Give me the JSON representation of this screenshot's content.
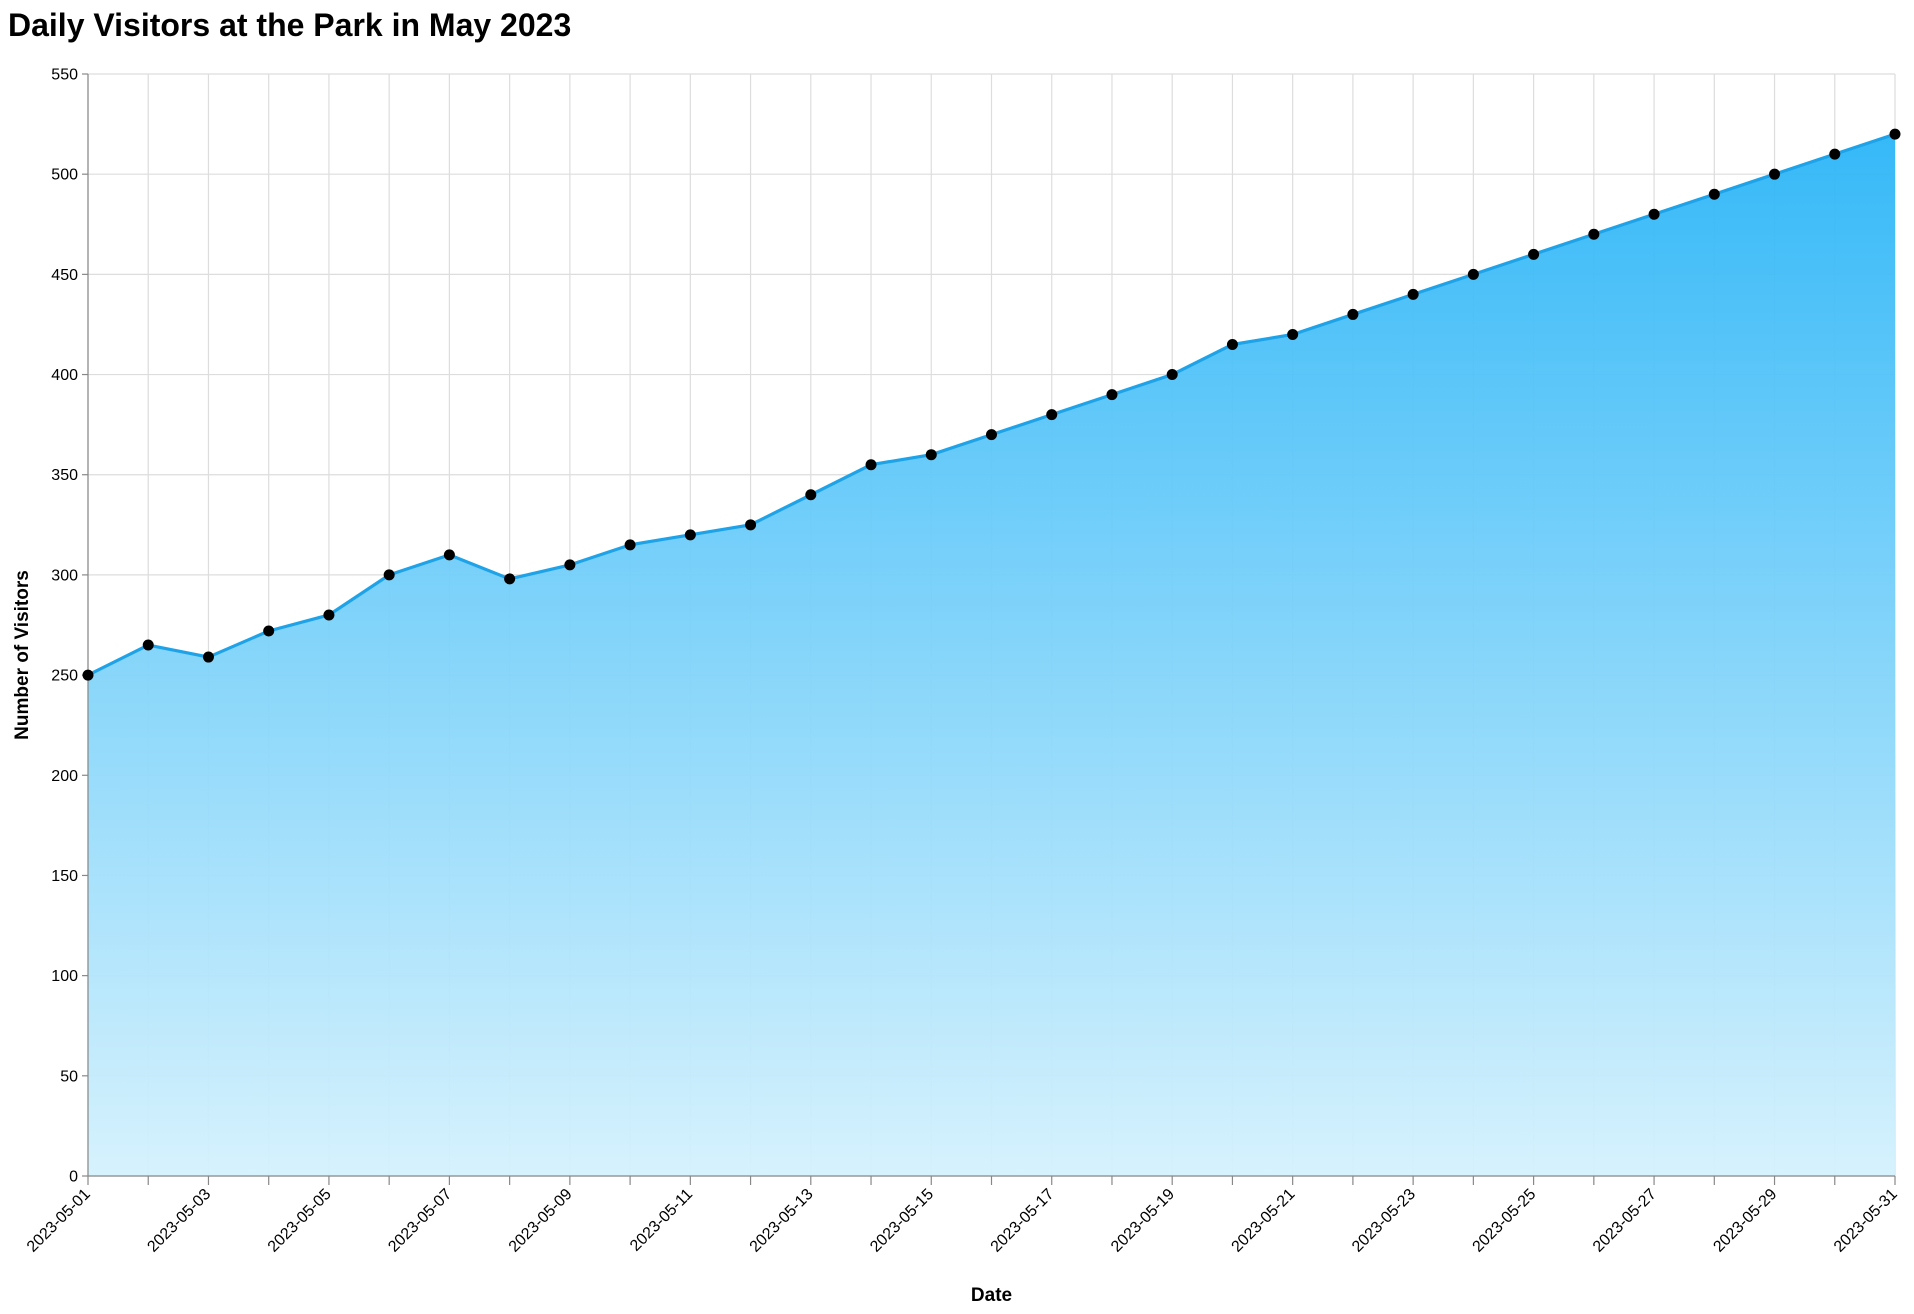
{
  "chart_data": {
    "type": "area",
    "title": "Daily Visitors at the Park in May 2023",
    "xlabel": "Date",
    "ylabel": "Number of Visitors",
    "ylim": [
      0,
      550
    ],
    "y_ticks": [
      0,
      50,
      100,
      150,
      200,
      250,
      300,
      350,
      400,
      450,
      500,
      550
    ],
    "x_tick_labels": [
      "2023-05-01",
      "2023-05-03",
      "2023-05-05",
      "2023-05-07",
      "2023-05-09",
      "2023-05-11",
      "2023-05-13",
      "2023-05-15",
      "2023-05-17",
      "2023-05-19",
      "2023-05-21",
      "2023-05-23",
      "2023-05-25",
      "2023-05-27",
      "2023-05-29",
      "2023-05-31"
    ],
    "grid": true,
    "legend": "none",
    "colors": {
      "line": "#1fa3e8",
      "area_top": "#2bb5f7",
      "area_bottom": "#d4f1fd",
      "point": "#000000"
    },
    "x": [
      "2023-05-01",
      "2023-05-02",
      "2023-05-03",
      "2023-05-04",
      "2023-05-05",
      "2023-05-06",
      "2023-05-07",
      "2023-05-08",
      "2023-05-09",
      "2023-05-10",
      "2023-05-11",
      "2023-05-12",
      "2023-05-13",
      "2023-05-14",
      "2023-05-15",
      "2023-05-16",
      "2023-05-17",
      "2023-05-18",
      "2023-05-19",
      "2023-05-20",
      "2023-05-21",
      "2023-05-22",
      "2023-05-23",
      "2023-05-24",
      "2023-05-25",
      "2023-05-26",
      "2023-05-27",
      "2023-05-28",
      "2023-05-29",
      "2023-05-30",
      "2023-05-31"
    ],
    "values": [
      250,
      265,
      259,
      272,
      280,
      300,
      310,
      298,
      305,
      315,
      320,
      325,
      340,
      355,
      360,
      370,
      380,
      390,
      400,
      415,
      420,
      430,
      440,
      450,
      460,
      470,
      480,
      490,
      500,
      510,
      520
    ]
  }
}
